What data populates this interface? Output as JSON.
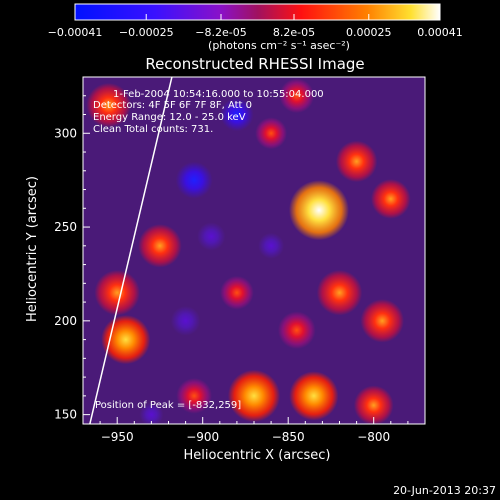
{
  "chart_data": {
    "type": "heatmap",
    "title": "Reconstructed RHESSI Image",
    "xlabel": "Heliocentric X (arcsec)",
    "ylabel": "Heliocentric Y (arcsec)",
    "xlim": [
      -970,
      -770
    ],
    "ylim": [
      145,
      330
    ],
    "x_ticks": [
      -950,
      -900,
      -850,
      -800
    ],
    "y_ticks": [
      150,
      200,
      250,
      300
    ],
    "colorbar": {
      "ticks": [
        "-0.00041",
        "-0.00025",
        "-8.2e-05",
        "8.2e-05",
        "0.00025",
        "0.00041"
      ],
      "tick_values": [
        -0.00041,
        -0.00025,
        -8.2e-05,
        8.2e-05,
        0.00025,
        0.00041
      ],
      "range": [
        -0.00041,
        0.00041
      ],
      "unit": "(photons cm⁻² s⁻¹ asec⁻²)"
    },
    "annotations": {
      "time": "1-Feb-2004 10:54:16.000 to 10:55:04.000",
      "detectors": "Detectors: 4F 5F 6F 7F 8F, Att 0",
      "energy": "Energy Range: 12.0 - 25.0 keV",
      "method": "Clean     Total counts: 731.",
      "peak": "Position of Peak = [-832,259]"
    },
    "peak": [
      -832,
      259
    ],
    "limb_line": [
      [
        -966,
        145
      ],
      [
        -918,
        330
      ]
    ],
    "sources": [
      {
        "x": -832,
        "y": 259,
        "value": 0.00041
      },
      {
        "x": -810,
        "y": 285,
        "value": 0.00022
      },
      {
        "x": -820,
        "y": 215,
        "value": 0.00026
      },
      {
        "x": -845,
        "y": 195,
        "value": 0.00018
      },
      {
        "x": -795,
        "y": 200,
        "value": 0.00024
      },
      {
        "x": -790,
        "y": 265,
        "value": 0.0002
      },
      {
        "x": -870,
        "y": 160,
        "value": 0.00033
      },
      {
        "x": -835,
        "y": 160,
        "value": 0.0003
      },
      {
        "x": -800,
        "y": 155,
        "value": 0.0002
      },
      {
        "x": -945,
        "y": 190,
        "value": 0.0003
      },
      {
        "x": -950,
        "y": 215,
        "value": 0.00026
      },
      {
        "x": -925,
        "y": 240,
        "value": 0.00024
      },
      {
        "x": -955,
        "y": 315,
        "value": 0.00025
      },
      {
        "x": -905,
        "y": 160,
        "value": 0.00016
      },
      {
        "x": -880,
        "y": 215,
        "value": 0.00014
      },
      {
        "x": -860,
        "y": 300,
        "value": 0.00012
      },
      {
        "x": -845,
        "y": 320,
        "value": 0.00015
      },
      {
        "x": -905,
        "y": 275,
        "value": -0.0003
      },
      {
        "x": -880,
        "y": 310,
        "value": -0.00025
      },
      {
        "x": -895,
        "y": 245,
        "value": -0.00018
      },
      {
        "x": -910,
        "y": 200,
        "value": -0.0002
      },
      {
        "x": -860,
        "y": 240,
        "value": -0.00015
      },
      {
        "x": -930,
        "y": 150,
        "value": -0.00012
      }
    ]
  },
  "footer": {
    "date": "20-Jun-2013 20:37"
  }
}
